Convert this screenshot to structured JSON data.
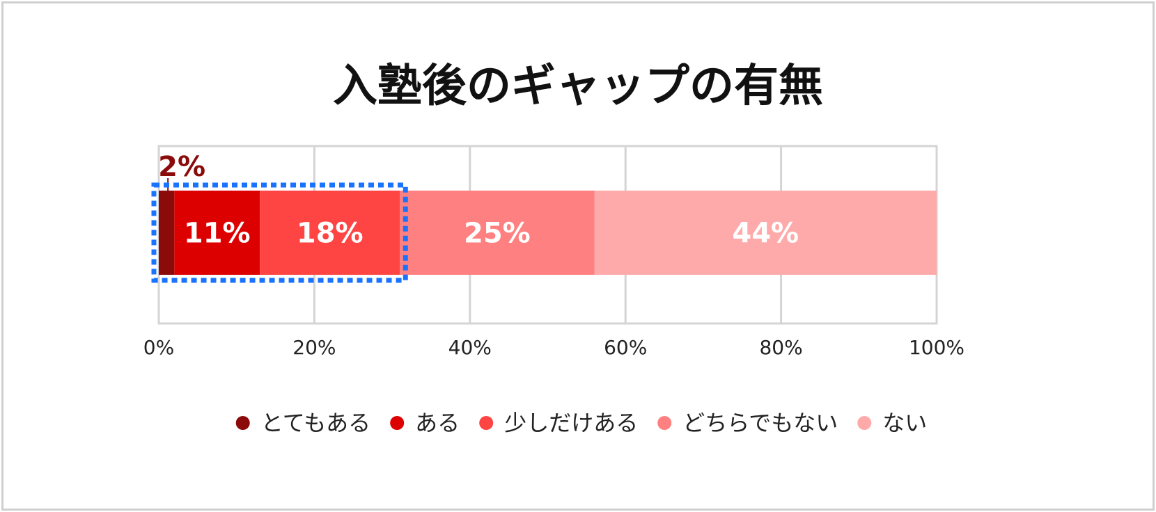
{
  "chart_data": {
    "type": "bar",
    "orientation": "horizontal-stacked",
    "title": "入塾後のギャップの有無",
    "categories": [
      ""
    ],
    "xlim": [
      0,
      100
    ],
    "x_ticks": [
      "0%",
      "20%",
      "40%",
      "60%",
      "80%",
      "100%"
    ],
    "grid": true,
    "legend_position": "bottom",
    "series": [
      {
        "name": "とてもある",
        "values": [
          2
        ],
        "label": "2%",
        "color": "#8b0a0a"
      },
      {
        "name": "ある",
        "values": [
          11
        ],
        "label": "11%",
        "color": "#dd0000"
      },
      {
        "name": "少しだけある",
        "values": [
          18
        ],
        "label": "18%",
        "color": "#ff4444"
      },
      {
        "name": "どちらでもない",
        "values": [
          25
        ],
        "label": "25%",
        "color": "#ff8080"
      },
      {
        "name": "ない",
        "values": [
          44
        ],
        "label": "44%",
        "color": "#ffaaaa"
      }
    ],
    "highlight": {
      "from": 0,
      "to": 31,
      "color": "#1a73ff",
      "style": "dotted"
    }
  }
}
